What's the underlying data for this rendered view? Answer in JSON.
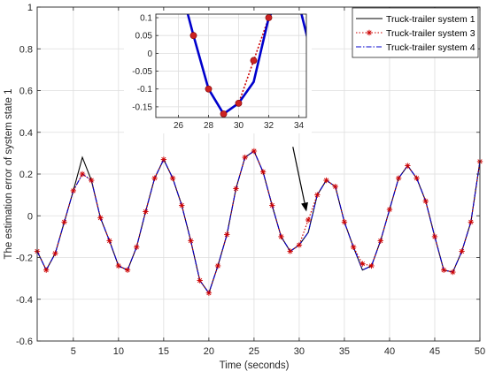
{
  "chart_data": {
    "type": "line",
    "title": "",
    "xlabel": "Time (seconds)",
    "ylabel": "The estimation error of system state 1",
    "xlim": [
      1,
      50
    ],
    "ylim": [
      -0.6,
      1
    ],
    "xticks": [
      5,
      10,
      15,
      20,
      25,
      30,
      35,
      40,
      45,
      50
    ],
    "yticks": [
      -0.6,
      -0.4,
      -0.2,
      0,
      0.2,
      0.4,
      0.6,
      0.8,
      1
    ],
    "ytick_labels": [
      "-0.6",
      "-0.4",
      "-0.2",
      "0",
      "0.2",
      "0.4",
      "0.6",
      "0.8",
      "1"
    ],
    "grid": true,
    "legend_position": "top-right",
    "x": [
      1,
      2,
      3,
      4,
      5,
      6,
      7,
      8,
      9,
      10,
      11,
      12,
      13,
      14,
      15,
      16,
      17,
      18,
      19,
      20,
      21,
      22,
      23,
      24,
      25,
      26,
      27,
      28,
      29,
      30,
      31,
      32,
      33,
      34,
      35,
      36,
      37,
      38,
      39,
      40,
      41,
      42,
      43,
      44,
      45,
      46,
      47,
      48,
      49,
      50
    ],
    "series": [
      {
        "name": "Truck-trailer system 1",
        "color": "#000000",
        "style": "solid",
        "marker": "none",
        "values": [
          -0.17,
          -0.26,
          -0.18,
          -0.03,
          0.12,
          0.28,
          0.17,
          -0.01,
          -0.12,
          -0.24,
          -0.26,
          -0.15,
          0.02,
          0.18,
          0.27,
          0.18,
          0.05,
          -0.12,
          -0.31,
          -0.37,
          -0.24,
          -0.09,
          0.13,
          0.28,
          0.31,
          0.21,
          0.05,
          -0.1,
          -0.17,
          -0.14,
          -0.08,
          0.1,
          0.17,
          0.14,
          -0.03,
          -0.15,
          -0.26,
          -0.24,
          -0.12,
          0.03,
          0.18,
          0.24,
          0.18,
          0.07,
          -0.1,
          -0.26,
          -0.27,
          -0.17,
          -0.03,
          0.26
        ]
      },
      {
        "name": "Truck-trailer system 3",
        "color": "#cc0000",
        "style": "dotted",
        "marker": "asterisk",
        "values": [
          -0.17,
          -0.26,
          -0.18,
          -0.03,
          0.12,
          0.2,
          0.17,
          -0.01,
          -0.12,
          -0.24,
          -0.26,
          -0.15,
          0.02,
          0.18,
          0.27,
          0.18,
          0.05,
          -0.12,
          -0.31,
          -0.37,
          -0.24,
          -0.09,
          0.13,
          0.28,
          0.31,
          0.21,
          0.05,
          -0.1,
          -0.17,
          -0.14,
          -0.02,
          0.1,
          0.17,
          0.14,
          -0.03,
          -0.15,
          -0.23,
          -0.24,
          -0.12,
          0.03,
          0.18,
          0.24,
          0.18,
          0.07,
          -0.1,
          -0.26,
          -0.27,
          -0.17,
          -0.03,
          0.26
        ]
      },
      {
        "name": "Truck-trailer system 4",
        "color": "#0000cc",
        "style": "dashdot",
        "marker": "none",
        "values": [
          -0.17,
          -0.26,
          -0.18,
          -0.03,
          0.12,
          0.2,
          0.17,
          -0.01,
          -0.12,
          -0.24,
          -0.26,
          -0.15,
          0.02,
          0.18,
          0.27,
          0.18,
          0.05,
          -0.12,
          -0.31,
          -0.37,
          -0.24,
          -0.09,
          0.13,
          0.28,
          0.31,
          0.21,
          0.05,
          -0.1,
          -0.17,
          -0.14,
          -0.08,
          0.1,
          0.17,
          0.14,
          -0.03,
          -0.15,
          -0.26,
          -0.24,
          -0.12,
          0.03,
          0.18,
          0.24,
          0.18,
          0.07,
          -0.1,
          -0.26,
          -0.27,
          -0.17,
          -0.03,
          0.26
        ]
      }
    ],
    "inset": {
      "xlim": [
        24.5,
        34.5
      ],
      "ylim": [
        -0.18,
        0.11
      ],
      "xticks": [
        26,
        28,
        30,
        32,
        34
      ],
      "yticks": [
        -0.15,
        -0.1,
        -0.05,
        0,
        0.05,
        0.1
      ],
      "ytick_labels": [
        "-0.15",
        "-0.1",
        "-0.05",
        "0",
        "0.05",
        "0.1"
      ],
      "grid": true,
      "markers": [
        [
          27,
          0.05
        ],
        [
          28,
          -0.1
        ],
        [
          29,
          -0.17
        ],
        [
          30,
          -0.14
        ],
        [
          31,
          -0.02
        ],
        [
          32,
          0.1
        ]
      ]
    },
    "annotation": {
      "type": "arrow",
      "from": [
        29.3,
        0.33
      ],
      "to": [
        30.8,
        0.02
      ]
    }
  }
}
